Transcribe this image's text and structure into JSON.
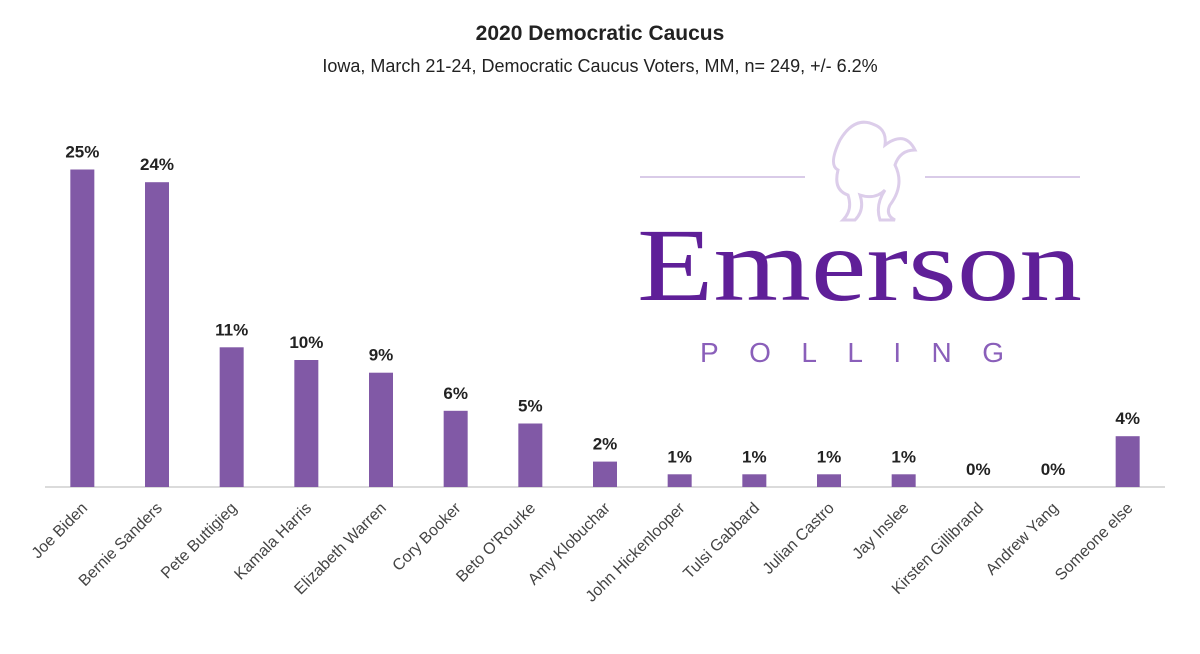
{
  "chart_data": {
    "type": "bar",
    "title": "2020 Democratic Caucus",
    "subtitle": "Iowa, March 21-24, Democratic Caucus Voters, MM, n= 249, +/- 6.2%",
    "categories": [
      "Joe Biden",
      "Bernie Sanders",
      "Pete Buttigieg",
      "Kamala Harris",
      "Elizabeth Warren",
      "Cory Booker",
      "Beto O'Rourke",
      "Amy Klobuchar",
      "John Hickenlooper",
      "Tulsi Gabbard",
      "Julian Castro",
      "Jay Inslee",
      "Kirsten Gillibrand",
      "Andrew Yang",
      "Someone else"
    ],
    "values": [
      25,
      24,
      11,
      10,
      9,
      6,
      5,
      2,
      1,
      1,
      1,
      1,
      0,
      0,
      4
    ],
    "value_labels": [
      "25%",
      "24%",
      "11%",
      "10%",
      "9%",
      "6%",
      "5%",
      "2%",
      "1%",
      "1%",
      "1%",
      "1%",
      "0%",
      "0%",
      "4%"
    ],
    "color": "#8159a6",
    "logo": {
      "name": "Emerson",
      "tagline": "POLLING"
    }
  }
}
